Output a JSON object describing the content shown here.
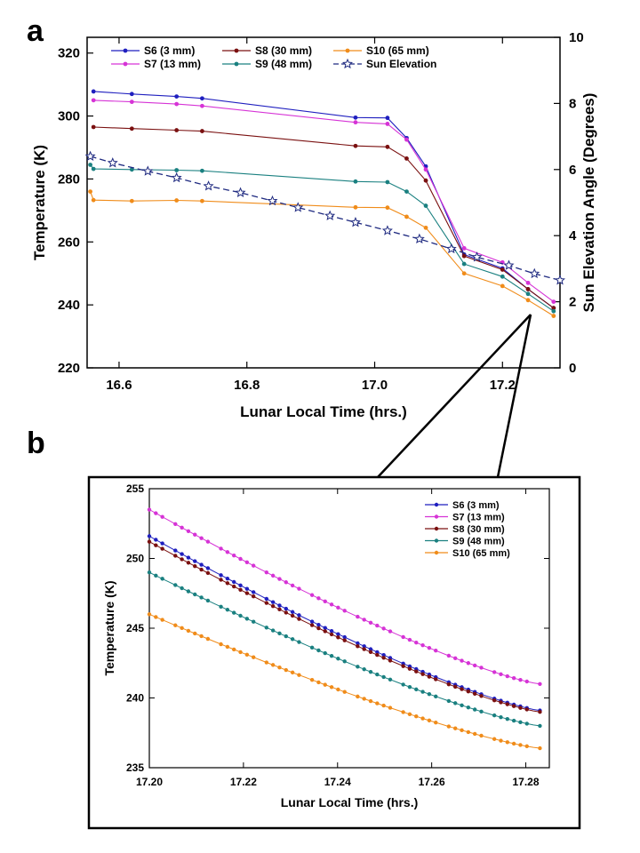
{
  "panel_a_label": "a",
  "panel_b_label": "b",
  "chart_data": [
    {
      "type": "line",
      "panel": "a",
      "xlabel": "Lunar Local Time (hrs.)",
      "ylabel": "Temperature (K)",
      "y2label": "Sun Elevation Angle (Degrees)",
      "xlim": [
        16.55,
        17.29
      ],
      "ylim": [
        220,
        325
      ],
      "y2lim": [
        0,
        10
      ],
      "xticks": [
        "16.6",
        "16.8",
        "17.0",
        "17.2"
      ],
      "xtick_values": [
        16.6,
        16.8,
        17.0,
        17.2
      ],
      "yticks": [
        "220",
        "240",
        "260",
        "280",
        "300",
        "320"
      ],
      "ytick_values": [
        220,
        240,
        260,
        280,
        300,
        320
      ],
      "y2ticks": [
        "0",
        "2",
        "4",
        "6",
        "8",
        "10"
      ],
      "y2tick_values": [
        0,
        2,
        4,
        6,
        8,
        10
      ],
      "legend_position": "top",
      "series": [
        {
          "name": "S6 (3 mm)",
          "color": "#1f1fbf",
          "marker": "dot",
          "axis": "left",
          "x": [
            16.56,
            16.62,
            16.69,
            16.73,
            16.97,
            17.02,
            17.05,
            17.08,
            17.14,
            17.2,
            17.24,
            17.28
          ],
          "y": [
            307.8,
            307.0,
            306.2,
            305.6,
            299.5,
            299.4,
            293.0,
            284.0,
            256.0,
            251.6,
            245.0,
            239.0
          ]
        },
        {
          "name": "S7 (13 mm)",
          "color": "#d633d6",
          "marker": "dot",
          "axis": "left",
          "x": [
            16.56,
            16.62,
            16.69,
            16.73,
            16.97,
            17.02,
            17.05,
            17.08,
            17.14,
            17.2,
            17.24,
            17.28
          ],
          "y": [
            305.0,
            304.5,
            303.8,
            303.2,
            298.0,
            297.5,
            292.5,
            283.0,
            258.0,
            253.5,
            247.0,
            241.0
          ]
        },
        {
          "name": "S8 (30 mm)",
          "color": "#7a1010",
          "marker": "dot",
          "axis": "left",
          "x": [
            16.56,
            16.62,
            16.69,
            16.73,
            16.97,
            17.02,
            17.05,
            17.08,
            17.14,
            17.2,
            17.24,
            17.28
          ],
          "y": [
            296.5,
            296.0,
            295.5,
            295.2,
            290.5,
            290.2,
            286.5,
            279.5,
            255.5,
            251.2,
            245.0,
            239.0
          ]
        },
        {
          "name": "S9 (48 mm)",
          "color": "#1a8080",
          "marker": "dot",
          "axis": "left",
          "x": [
            16.555,
            16.56,
            16.62,
            16.69,
            16.73,
            16.97,
            17.02,
            17.05,
            17.08,
            17.14,
            17.2,
            17.24,
            17.28
          ],
          "y": [
            284.5,
            283.2,
            283.0,
            282.8,
            282.6,
            279.2,
            279.0,
            276.0,
            271.5,
            253.0,
            249.0,
            243.5,
            238.0
          ]
        },
        {
          "name": "S10 (65 mm)",
          "color": "#f08c1a",
          "marker": "dot",
          "axis": "left",
          "x": [
            16.555,
            16.56,
            16.62,
            16.69,
            16.73,
            16.97,
            17.02,
            17.05,
            17.08,
            17.14,
            17.2,
            17.24,
            17.28
          ],
          "y": [
            276.0,
            273.3,
            273.0,
            273.2,
            273.0,
            271.0,
            270.9,
            268.0,
            264.5,
            250.0,
            246.0,
            241.5,
            236.5
          ]
        },
        {
          "name": "Sun Elevation",
          "color": "#1f2a80",
          "marker": "star",
          "dashed": true,
          "axis": "right",
          "x": [
            16.555,
            16.59,
            16.645,
            16.69,
            16.74,
            16.79,
            16.84,
            16.88,
            16.93,
            16.97,
            17.02,
            17.07,
            17.12,
            17.16,
            17.21,
            17.25,
            17.29
          ],
          "y": [
            6.4,
            6.2,
            5.95,
            5.75,
            5.5,
            5.3,
            5.05,
            4.85,
            4.6,
            4.4,
            4.15,
            3.9,
            3.6,
            3.35,
            3.1,
            2.85,
            2.65
          ]
        }
      ]
    },
    {
      "type": "line",
      "panel": "b",
      "xlabel": "Lunar Local Time (hrs.)",
      "ylabel": "Temperature (K)",
      "xlim": [
        17.2,
        17.285
      ],
      "ylim": [
        235,
        255
      ],
      "xticks": [
        "17.20",
        "17.22",
        "17.24",
        "17.26",
        "17.28"
      ],
      "xtick_values": [
        17.2,
        17.22,
        17.24,
        17.26,
        17.28
      ],
      "yticks": [
        "235",
        "240",
        "245",
        "250",
        "255"
      ],
      "ytick_values": [
        235,
        240,
        245,
        250,
        255
      ],
      "legend_position": "top-right",
      "series": [
        {
          "name": "S6 (3 mm)",
          "color": "#1f1fbf",
          "x_start": 17.2,
          "x_end": 17.283,
          "y_start": 251.6,
          "y_end": 239.1
        },
        {
          "name": "S7 (13 mm)",
          "color": "#d633d6",
          "x_start": 17.2,
          "x_end": 17.283,
          "y_start": 253.5,
          "y_end": 241.0
        },
        {
          "name": "S8 (30 mm)",
          "color": "#7a1010",
          "x_start": 17.2,
          "x_end": 17.283,
          "y_start": 251.2,
          "y_end": 239.0
        },
        {
          "name": "S9 (48 mm)",
          "color": "#1a8080",
          "x_start": 17.2,
          "x_end": 17.283,
          "y_start": 249.0,
          "y_end": 238.0
        },
        {
          "name": "S10 (65 mm)",
          "color": "#f08c1a",
          "x_start": 17.2,
          "x_end": 17.283,
          "y_start": 246.0,
          "y_end": 236.4
        }
      ]
    }
  ]
}
